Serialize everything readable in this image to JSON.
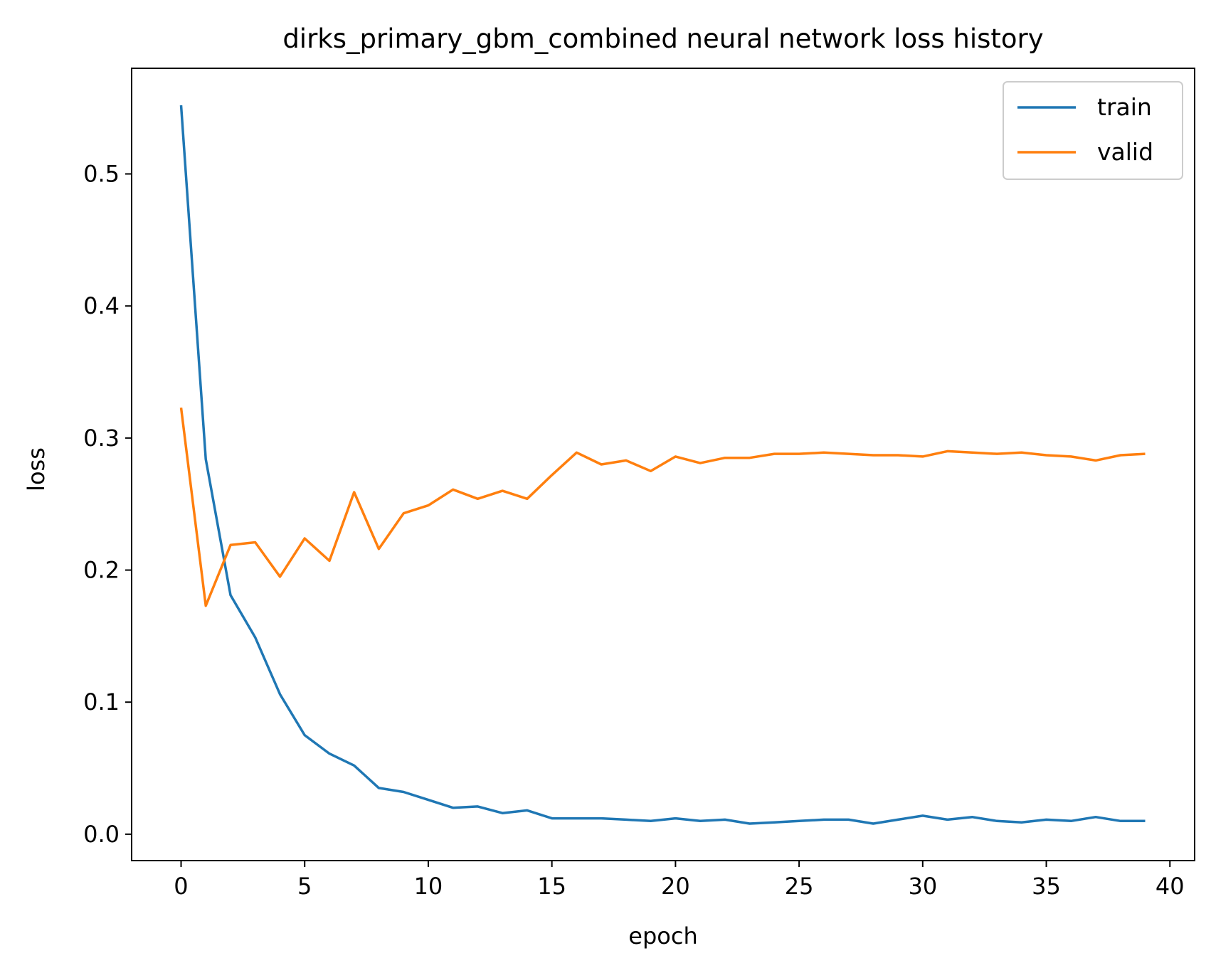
{
  "chart_data": {
    "type": "line",
    "title": "dirks_primary_gbm_combined neural network loss history",
    "xlabel": "epoch",
    "ylabel": "loss",
    "xlim": [
      -2,
      41
    ],
    "ylim": [
      -0.02,
      0.58
    ],
    "xticks": [
      0,
      5,
      10,
      15,
      20,
      25,
      30,
      35,
      40
    ],
    "xtick_labels": [
      "0",
      "5",
      "10",
      "15",
      "20",
      "25",
      "30",
      "35",
      "40"
    ],
    "yticks": [
      0.0,
      0.1,
      0.2,
      0.3,
      0.4,
      0.5
    ],
    "ytick_labels": [
      "0.0",
      "0.1",
      "0.2",
      "0.3",
      "0.4",
      "0.5"
    ],
    "grid": false,
    "legend_position": "top-right",
    "x": [
      0,
      1,
      2,
      3,
      4,
      5,
      6,
      7,
      8,
      9,
      10,
      11,
      12,
      13,
      14,
      15,
      16,
      17,
      18,
      19,
      20,
      21,
      22,
      23,
      24,
      25,
      26,
      27,
      28,
      29,
      30,
      31,
      32,
      33,
      34,
      35,
      36,
      37,
      38,
      39
    ],
    "series": [
      {
        "name": "train",
        "color": "#1f77b4",
        "values": [
          0.552,
          0.284,
          0.181,
          0.149,
          0.106,
          0.075,
          0.061,
          0.052,
          0.035,
          0.032,
          0.026,
          0.02,
          0.021,
          0.016,
          0.018,
          0.012,
          0.012,
          0.012,
          0.011,
          0.01,
          0.012,
          0.01,
          0.011,
          0.008,
          0.009,
          0.01,
          0.011,
          0.011,
          0.008,
          0.011,
          0.014,
          0.011,
          0.013,
          0.01,
          0.009,
          0.011,
          0.01,
          0.013,
          0.01,
          0.01
        ]
      },
      {
        "name": "valid",
        "color": "#ff7f0e",
        "values": [
          0.323,
          0.173,
          0.219,
          0.221,
          0.195,
          0.224,
          0.207,
          0.259,
          0.216,
          0.243,
          0.249,
          0.261,
          0.254,
          0.26,
          0.254,
          0.272,
          0.289,
          0.28,
          0.283,
          0.275,
          0.286,
          0.281,
          0.285,
          0.285,
          0.288,
          0.288,
          0.289,
          0.288,
          0.287,
          0.287,
          0.286,
          0.29,
          0.289,
          0.288,
          0.289,
          0.287,
          0.286,
          0.283,
          0.287,
          0.288
        ]
      }
    ]
  }
}
